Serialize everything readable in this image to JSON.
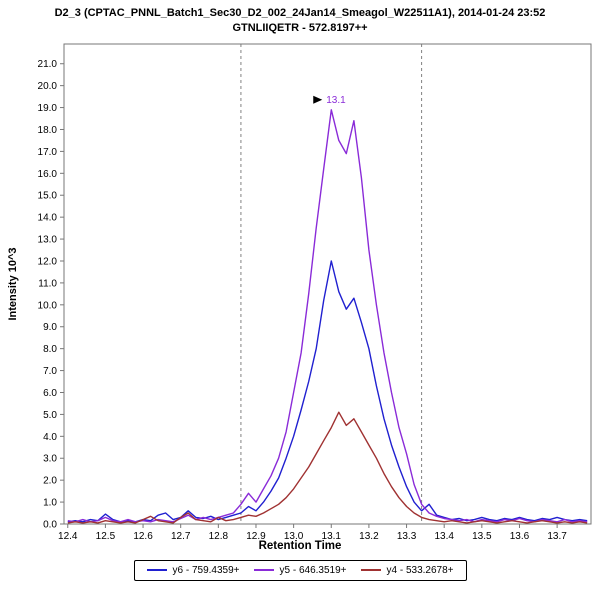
{
  "chart_data": {
    "type": "line",
    "title": "D2_3 (CPTAC_PNNL_Batch1_Sec30_D2_002_24Jan14_Smeagol_W22511A1), 2014-01-24 23:52",
    "subtitle": "GTNLIIQETR - 572.8197++",
    "xlabel": "Retention Time",
    "ylabel": "Intensity 10^3",
    "xlim": [
      12.39,
      13.79
    ],
    "ylim": [
      0,
      21.9
    ],
    "grid": false,
    "legend_position": "bottom",
    "x_ticks": [
      12.4,
      12.5,
      12.6,
      12.7,
      12.8,
      12.9,
      13.0,
      13.1,
      13.2,
      13.3,
      13.4,
      13.5,
      13.6,
      13.7
    ],
    "y_ticks": [
      0,
      1,
      2,
      3,
      4,
      5,
      6,
      7,
      8,
      9,
      10,
      11,
      12,
      13,
      14,
      15,
      16,
      17,
      18,
      19,
      20,
      21
    ],
    "boundaries": [
      12.86,
      13.34
    ],
    "annotation": {
      "text": "13.1",
      "x": 13.1,
      "y": 18.9,
      "color": "#8a2bd8"
    },
    "axis_color": "#777777",
    "boundary_color": "#808080",
    "x": [
      12.4,
      12.42,
      12.44,
      12.46,
      12.48,
      12.5,
      12.52,
      12.54,
      12.56,
      12.58,
      12.6,
      12.62,
      12.64,
      12.66,
      12.68,
      12.7,
      12.72,
      12.74,
      12.76,
      12.78,
      12.8,
      12.82,
      12.84,
      12.86,
      12.88,
      12.9,
      12.92,
      12.94,
      12.96,
      12.98,
      13.0,
      13.02,
      13.04,
      13.06,
      13.08,
      13.1,
      13.12,
      13.14,
      13.16,
      13.18,
      13.2,
      13.22,
      13.24,
      13.26,
      13.28,
      13.3,
      13.32,
      13.34,
      13.36,
      13.38,
      13.4,
      13.42,
      13.44,
      13.46,
      13.48,
      13.5,
      13.52,
      13.54,
      13.56,
      13.58,
      13.6,
      13.62,
      13.64,
      13.66,
      13.68,
      13.7,
      13.72,
      13.74,
      13.76,
      13.78
    ],
    "series": [
      {
        "name": "y6 - 759.4359+",
        "color": "#2020d0",
        "values": [
          0.1,
          0.15,
          0.1,
          0.2,
          0.15,
          0.45,
          0.2,
          0.1,
          0.15,
          0.1,
          0.2,
          0.15,
          0.4,
          0.5,
          0.2,
          0.3,
          0.6,
          0.3,
          0.25,
          0.35,
          0.2,
          0.3,
          0.4,
          0.5,
          0.8,
          0.6,
          1.0,
          1.5,
          2.1,
          3.0,
          4.0,
          5.2,
          6.5,
          8.0,
          10.2,
          12.0,
          10.6,
          9.8,
          10.3,
          9.2,
          8.0,
          6.3,
          4.8,
          3.6,
          2.6,
          1.7,
          1.0,
          0.6,
          0.9,
          0.4,
          0.3,
          0.2,
          0.25,
          0.15,
          0.2,
          0.3,
          0.2,
          0.15,
          0.25,
          0.2,
          0.3,
          0.2,
          0.15,
          0.25,
          0.2,
          0.3,
          0.2,
          0.15,
          0.2,
          0.15
        ]
      },
      {
        "name": "y5 - 646.3519+",
        "color": "#8a2bd8",
        "values": [
          0.15,
          0.1,
          0.2,
          0.1,
          0.15,
          0.3,
          0.15,
          0.1,
          0.2,
          0.1,
          0.15,
          0.1,
          0.2,
          0.15,
          0.1,
          0.25,
          0.4,
          0.2,
          0.3,
          0.2,
          0.3,
          0.4,
          0.5,
          0.9,
          1.4,
          1.0,
          1.6,
          2.2,
          3.0,
          4.2,
          6.0,
          7.8,
          10.5,
          13.5,
          16.2,
          18.9,
          17.5,
          16.9,
          18.4,
          15.8,
          12.5,
          10.0,
          7.8,
          6.0,
          4.4,
          3.2,
          1.8,
          0.9,
          0.5,
          0.35,
          0.25,
          0.2,
          0.15,
          0.2,
          0.1,
          0.2,
          0.15,
          0.1,
          0.2,
          0.15,
          0.25,
          0.15,
          0.1,
          0.2,
          0.15,
          0.1,
          0.2,
          0.1,
          0.15,
          0.1
        ]
      },
      {
        "name": "y4 - 533.2678+",
        "color": "#a03232",
        "values": [
          0.05,
          0.1,
          0.05,
          0.1,
          0.05,
          0.15,
          0.1,
          0.05,
          0.1,
          0.05,
          0.2,
          0.35,
          0.15,
          0.1,
          0.05,
          0.3,
          0.5,
          0.2,
          0.15,
          0.1,
          0.3,
          0.15,
          0.2,
          0.3,
          0.4,
          0.35,
          0.5,
          0.7,
          0.9,
          1.2,
          1.6,
          2.1,
          2.6,
          3.2,
          3.8,
          4.4,
          5.1,
          4.5,
          4.8,
          4.2,
          3.6,
          3.0,
          2.3,
          1.7,
          1.2,
          0.8,
          0.5,
          0.3,
          0.2,
          0.15,
          0.1,
          0.15,
          0.1,
          0.05,
          0.1,
          0.15,
          0.1,
          0.05,
          0.1,
          0.15,
          0.1,
          0.05,
          0.1,
          0.15,
          0.1,
          0.05,
          0.1,
          0.05,
          0.1,
          0.05
        ]
      }
    ]
  }
}
